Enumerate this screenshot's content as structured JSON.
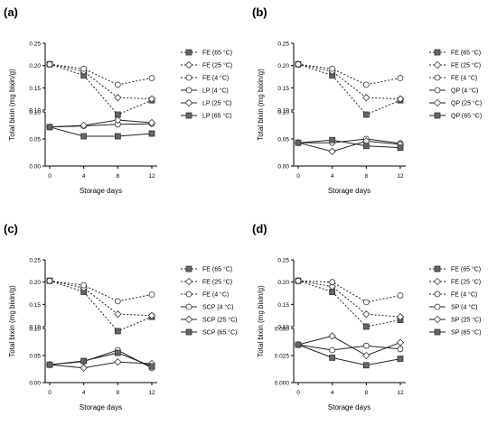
{
  "panels": [
    {
      "id": "a",
      "panel_label": "(a)",
      "ylabel": "Total bixin (mg bixin/g)",
      "xlabel": "Storage days",
      "top_ticks": [
        "0.25",
        "0.20",
        "0.15",
        "0.10"
      ],
      "bottom_ticks": [
        "0.10",
        "0.05",
        "0.00"
      ],
      "x_ticks": [
        "0",
        "4",
        "8",
        "12"
      ],
      "legend": [
        "FE (65 °C)",
        "FE (25 °C)",
        "FE (4 °C)",
        "LP (4 °C)",
        "LP (25 °C)",
        "LP (65 °C)"
      ]
    },
    {
      "id": "b",
      "panel_label": "(b)",
      "ylabel": "Total bixin (mg bixin/g)",
      "xlabel": "Storage days",
      "top_ticks": [
        "0.25",
        "0.20",
        "0.15",
        "0.10"
      ],
      "bottom_ticks": [
        "0.10",
        "0.05",
        "0.00"
      ],
      "x_ticks": [
        "0",
        "4",
        "8",
        "12"
      ],
      "legend": [
        "FE (65 °C)",
        "FE (25 °C)",
        "FE (4 °C)",
        "QP (4 °C)",
        "QP (25 °C)",
        "QP (65 °C)"
      ]
    },
    {
      "id": "c",
      "panel_label": "(c)",
      "ylabel": "Total bixin (mg bixin/g)",
      "xlabel": "Storage days",
      "top_ticks": [
        "0.25",
        "0.20",
        "0.15",
        "0.10"
      ],
      "bottom_ticks": [
        "0.10",
        "0.05",
        "0.00"
      ],
      "x_ticks": [
        "0",
        "4",
        "8",
        "12"
      ],
      "legend": [
        "FE (65 °C)",
        "FE (25 °C)",
        "FE (4 °C)",
        "SCP (4 °C)",
        "SCP (25 °C)",
        "SCP (65 °C)"
      ]
    },
    {
      "id": "d",
      "panel_label": "(d)",
      "ylabel": "Total bixin (mg bixin/g)",
      "xlabel": "Storage days",
      "top_ticks": [
        "0.25",
        "0.20",
        "0.15",
        "0.10"
      ],
      "bottom_ticks": [
        "0.050",
        "0.025",
        "0.000"
      ],
      "x_ticks": [
        "0",
        "4",
        "8",
        "12"
      ],
      "legend": [
        "FE (65 °C)",
        "FE (25 °C)",
        "FE (4 °C)",
        "SP (4 °C)",
        "SP (25 °C)",
        "SP (65 °C)"
      ]
    }
  ],
  "chart_data": [
    {
      "type": "line",
      "panel": "(a)",
      "xlabel": "Storage days",
      "ylabel": "Total bixin (mg bixin/g)",
      "x": [
        0,
        4,
        8,
        12
      ],
      "y_axis_broken": true,
      "ylim_top": [
        0.1,
        0.25
      ],
      "ylim_bottom": [
        0.0,
        0.1
      ],
      "legend_position": "right",
      "series": [
        {
          "name": "FE (65 °C)",
          "values": [
            0.203,
            0.178,
            0.095,
            0.122
          ]
        },
        {
          "name": "FE (25 °C)",
          "values": [
            0.203,
            0.187,
            0.128,
            0.125
          ]
        },
        {
          "name": "FE (4 °C)",
          "values": [
            0.203,
            0.193,
            0.157,
            0.172
          ]
        },
        {
          "name": "LP (4 °C)",
          "values": [
            0.072,
            0.074,
            0.077,
            0.078
          ]
        },
        {
          "name": "LP (25 °C)",
          "values": [
            0.072,
            0.075,
            0.085,
            0.08
          ]
        },
        {
          "name": "LP (65 °C)",
          "values": [
            0.072,
            0.055,
            0.055,
            0.06
          ]
        }
      ]
    },
    {
      "type": "line",
      "panel": "(b)",
      "xlabel": "Storage days",
      "ylabel": "Total bixin (mg bixin/g)",
      "x": [
        0,
        4,
        8,
        12
      ],
      "y_axis_broken": true,
      "ylim_top": [
        0.1,
        0.25
      ],
      "ylim_bottom": [
        0.0,
        0.1
      ],
      "legend_position": "right",
      "series": [
        {
          "name": "FE (65 °C)",
          "values": [
            0.203,
            0.178,
            0.095,
            0.122
          ]
        },
        {
          "name": "FE (25 °C)",
          "values": [
            0.203,
            0.187,
            0.128,
            0.125
          ]
        },
        {
          "name": "FE (4 °C)",
          "values": [
            0.203,
            0.193,
            0.157,
            0.172
          ]
        },
        {
          "name": "QP (4 °C)",
          "values": [
            0.043,
            0.043,
            0.05,
            0.042
          ]
        },
        {
          "name": "QP (25 °C)",
          "values": [
            0.043,
            0.027,
            0.046,
            0.04
          ]
        },
        {
          "name": "QP (65 °C)",
          "values": [
            0.043,
            0.048,
            0.037,
            0.034
          ]
        }
      ]
    },
    {
      "type": "line",
      "panel": "(c)",
      "xlabel": "Storage days",
      "ylabel": "Total bixin (mg bixin/g)",
      "x": [
        0,
        4,
        8,
        12
      ],
      "y_axis_broken": true,
      "ylim_top": [
        0.1,
        0.25
      ],
      "ylim_bottom": [
        0.0,
        0.1
      ],
      "legend_position": "right",
      "series": [
        {
          "name": "FE (65 °C)",
          "values": [
            0.203,
            0.178,
            0.095,
            0.122
          ]
        },
        {
          "name": "FE (25 °C)",
          "values": [
            0.203,
            0.187,
            0.128,
            0.125
          ]
        },
        {
          "name": "FE (4 °C)",
          "values": [
            0.203,
            0.193,
            0.157,
            0.172
          ]
        },
        {
          "name": "SCP (4 °C)",
          "values": [
            0.033,
            0.039,
            0.06,
            0.027
          ]
        },
        {
          "name": "SCP (25 °C)",
          "values": [
            0.033,
            0.027,
            0.038,
            0.035
          ]
        },
        {
          "name": "SCP (65 °C)",
          "values": [
            0.033,
            0.04,
            0.055,
            0.03
          ]
        }
      ]
    },
    {
      "type": "line",
      "panel": "(d)",
      "xlabel": "Storage days",
      "ylabel": "Total bixin (mg bixin/g)",
      "x": [
        0,
        4,
        8,
        12
      ],
      "y_axis_broken": true,
      "ylim_top": [
        0.1,
        0.25
      ],
      "ylim_bottom": [
        0.0,
        0.05
      ],
      "legend_position": "right",
      "series": [
        {
          "name": "FE (65 °C)",
          "values": [
            0.203,
            0.178,
            0.1,
            0.115
          ]
        },
        {
          "name": "FE (25 °C)",
          "values": [
            0.203,
            0.19,
            0.128,
            0.122
          ]
        },
        {
          "name": "FE (4 °C)",
          "values": [
            0.203,
            0.2,
            0.155,
            0.17
          ]
        },
        {
          "name": "SP (4 °C)",
          "values": [
            0.035,
            0.03,
            0.034,
            0.031
          ]
        },
        {
          "name": "SP (25 °C)",
          "values": [
            0.035,
            0.043,
            0.025,
            0.037
          ]
        },
        {
          "name": "SP (65 °C)",
          "values": [
            0.035,
            0.023,
            0.016,
            0.022
          ]
        }
      ]
    }
  ]
}
